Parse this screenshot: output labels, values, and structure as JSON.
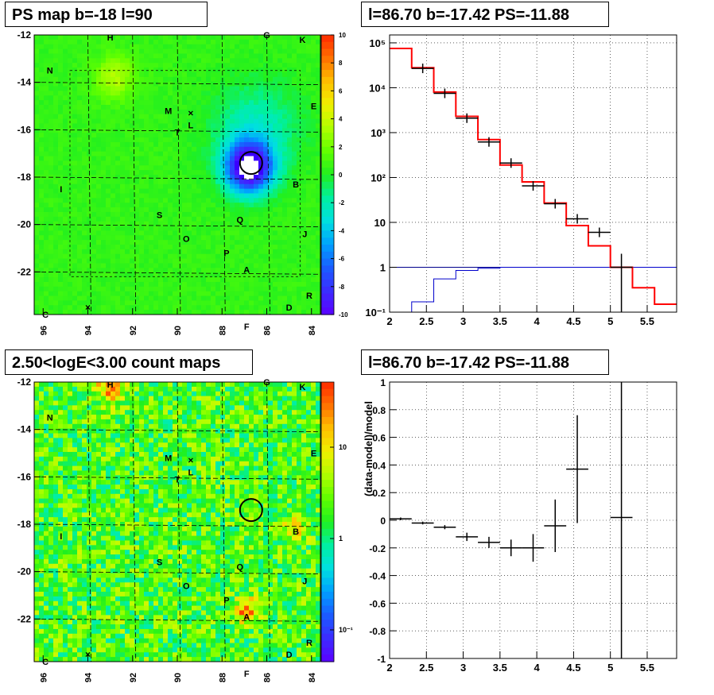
{
  "panels": {
    "tl": {
      "title": "PS map b=-18 l=90"
    },
    "tr": {
      "title": "l=86.70 b=-17.42 PS=-11.88"
    },
    "bl": {
      "title": "2.50<logE<3.00 count maps"
    },
    "br": {
      "title": "l=86.70 b=-17.42 PS=-11.88"
    }
  },
  "map_axes": {
    "x_ticks": [
      "96",
      "94",
      "92",
      "90",
      "88",
      "86",
      "84"
    ],
    "y_ticks": [
      "-12",
      "-14",
      "-16",
      "-18",
      "-20",
      "-22"
    ],
    "x_range": [
      96.4,
      83.6
    ],
    "y_range": [
      -23.8,
      -12
    ]
  },
  "ps_colorbar": {
    "ticks": [
      "10",
      "8",
      "6",
      "4",
      "2",
      "0",
      "-2",
      "-4",
      "-6",
      "-8",
      "-10"
    ]
  },
  "count_colorbar": {
    "ticks": [
      "10",
      "1",
      "10⁻¹"
    ]
  },
  "source_labels": [
    {
      "t": "H",
      "l": 93.0,
      "b": -12.1
    },
    {
      "t": "G",
      "l": 86.0,
      "b": -12.0
    },
    {
      "t": "K",
      "l": 84.4,
      "b": -12.2
    },
    {
      "t": "N",
      "l": 95.7,
      "b": -13.5
    },
    {
      "t": "E",
      "l": 83.9,
      "b": -15.0
    },
    {
      "t": "M",
      "l": 90.4,
      "b": -15.2
    },
    {
      "t": "L",
      "l": 89.4,
      "b": -15.8
    },
    {
      "t": "T",
      "l": 90.0,
      "b": -16.1
    },
    {
      "t": "I",
      "l": 95.2,
      "b": -18.5
    },
    {
      "t": "B",
      "l": 84.7,
      "b": -18.3
    },
    {
      "t": "S",
      "l": 90.8,
      "b": -19.6
    },
    {
      "t": "Q",
      "l": 87.2,
      "b": -19.8
    },
    {
      "t": "J",
      "l": 84.3,
      "b": -20.4
    },
    {
      "t": "O",
      "l": 89.6,
      "b": -20.6
    },
    {
      "t": "P",
      "l": 87.8,
      "b": -21.2
    },
    {
      "t": "A",
      "l": 86.9,
      "b": -21.9
    },
    {
      "t": "R",
      "l": 84.1,
      "b": -23.0
    },
    {
      "t": "D",
      "l": 85.0,
      "b": -23.5
    },
    {
      "t": "C",
      "l": 95.9,
      "b": -23.8
    },
    {
      "t": "F",
      "l": 86.9,
      "b": -24.3
    }
  ],
  "chart_data": [
    {
      "type": "heatmap",
      "title": "PS map b=-18 l=90",
      "zlim": [
        -10,
        10
      ],
      "features": [
        {
          "desc": "negative PS region",
          "l": 86.8,
          "b": -17.6,
          "value": -10
        },
        {
          "desc": "circle marker",
          "l": 86.7,
          "b": -17.4
        }
      ]
    },
    {
      "type": "line",
      "title": "l=86.70 b=-17.42 PS=-11.88",
      "ylog": true,
      "xlim": [
        2,
        5.9
      ],
      "ylim": [
        0.1,
        150000
      ],
      "x_ticks": [
        "2",
        "2.5",
        "3",
        "3.5",
        "4",
        "4.5",
        "5",
        "5.5"
      ],
      "y_ticks": [
        "10⁵",
        "10⁴",
        "10³",
        "10²",
        "10",
        "1",
        "10⁻¹"
      ],
      "model_red": {
        "edges": [
          2.0,
          2.3,
          2.6,
          2.9,
          3.2,
          3.5,
          3.8,
          4.1,
          4.4,
          4.7,
          5.0,
          5.3,
          5.6,
          5.9
        ],
        "values": [
          75000,
          28000,
          8000,
          2300,
          700,
          190,
          80,
          27,
          8.5,
          3,
          1,
          0.35,
          0.15
        ]
      },
      "background_blue": {
        "edges": [
          2.0,
          2.3,
          2.6,
          2.9,
          3.2,
          3.5,
          5.9
        ],
        "values": [
          0.1,
          0.17,
          0.55,
          0.85,
          0.95,
          1.0
        ]
      },
      "data_points": [
        {
          "x": 2.45,
          "y": 27000
        },
        {
          "x": 2.75,
          "y": 7500
        },
        {
          "x": 3.05,
          "y": 2100
        },
        {
          "x": 3.35,
          "y": 620
        },
        {
          "x": 3.65,
          "y": 210
        },
        {
          "x": 3.95,
          "y": 65
        },
        {
          "x": 4.25,
          "y": 26
        },
        {
          "x": 4.55,
          "y": 12
        },
        {
          "x": 4.85,
          "y": 6
        },
        {
          "x": 5.15,
          "y": 1,
          "ylo": 0.1,
          "yhi": 2
        }
      ]
    },
    {
      "type": "heatmap",
      "title": "2.50<logE<3.00 count maps",
      "zlog": true,
      "zlim": [
        0.05,
        30
      ],
      "features": [
        {
          "desc": "hot spot",
          "l": 86.9,
          "b": -21.6
        },
        {
          "desc": "hot spot",
          "l": 84.8,
          "b": -18.2
        },
        {
          "desc": "hot spot",
          "l": 93.0,
          "b": -12.2
        },
        {
          "desc": "circle marker",
          "l": 86.7,
          "b": -17.4
        }
      ]
    },
    {
      "type": "scatter",
      "title": "l=86.70 b=-17.42 PS=-11.88",
      "ylabel": "(data-model)/model",
      "xlim": [
        2,
        5.9
      ],
      "ylim": [
        -1,
        1
      ],
      "x_ticks": [
        "2",
        "2.5",
        "3",
        "3.5",
        "4",
        "4.5",
        "5",
        "5.5"
      ],
      "y_ticks": [
        "1",
        "0.8",
        "0.6",
        "0.4",
        "0.2",
        "0",
        "-0.2",
        "-0.4",
        "-0.6",
        "-0.8",
        "-1"
      ],
      "points": [
        {
          "x": 2.15,
          "y": 0.01,
          "xw": 0.15,
          "err": 0.01
        },
        {
          "x": 2.45,
          "y": -0.02,
          "xw": 0.15,
          "err": 0.01
        },
        {
          "x": 2.75,
          "y": -0.05,
          "xw": 0.15,
          "err": 0.015
        },
        {
          "x": 3.05,
          "y": -0.12,
          "xw": 0.15,
          "err": 0.03
        },
        {
          "x": 3.35,
          "y": -0.16,
          "xw": 0.15,
          "err": 0.04
        },
        {
          "x": 3.65,
          "y": -0.2,
          "xw": 0.15,
          "err": 0.06
        },
        {
          "x": 3.95,
          "y": -0.2,
          "xw": 0.15,
          "err": 0.1
        },
        {
          "x": 4.25,
          "y": -0.04,
          "xw": 0.15,
          "err": 0.19
        },
        {
          "x": 4.55,
          "y": 0.37,
          "xw": 0.15,
          "err": 0.39
        },
        {
          "x": 5.15,
          "y": 0.02,
          "xw": 0.15,
          "err": 1.2
        }
      ]
    }
  ]
}
